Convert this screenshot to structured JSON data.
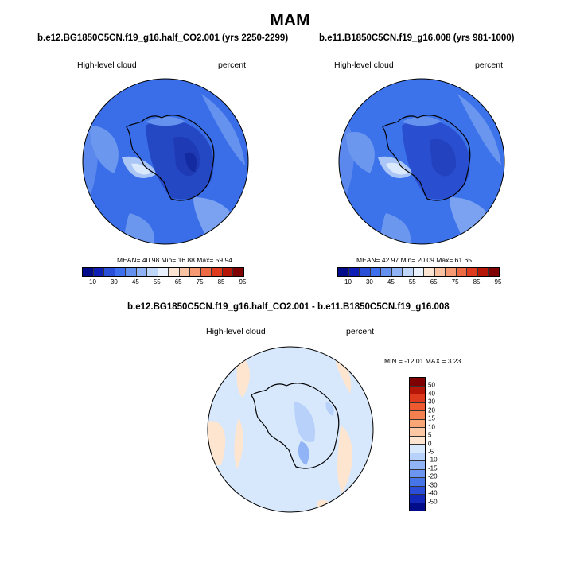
{
  "title": "MAM",
  "panels": [
    {
      "case": "b.e12.BG1850C5CN.f19_g16.half_CO2.001 (yrs 2250-2299)",
      "variable": "High-level cloud",
      "units": "percent",
      "stats": {
        "mean_label": "MEAN=",
        "mean": "40.98",
        "min_label": "Min=",
        "min": "16.88",
        "max_label": "Max=",
        "max": "59.94"
      }
    },
    {
      "case": "b.e11.B1850C5CN.f19_g16.008 (yrs 981-1000)",
      "variable": "High-level cloud",
      "units": "percent",
      "stats": {
        "mean_label": "MEAN=",
        "mean": "42.97",
        "min_label": "Min=",
        "min": "20.09",
        "max_label": "Max=",
        "max": "61.65"
      }
    },
    {
      "case": "b.e12.BG1850C5CN.f19_g16.half_CO2.001 - b.e11.B1850C5CN.f19_g16.008",
      "variable": "High-level cloud",
      "units": "percent",
      "minmax": "MIN = -12.01  MAX =   3.23"
    }
  ],
  "colorbar_abs": {
    "labels": [
      "10",
      "30",
      "45",
      "55",
      "65",
      "75",
      "85",
      "95"
    ],
    "colors": [
      "#000c8a",
      "#0f1fb4",
      "#2a4ed8",
      "#3c6eee",
      "#6490f0",
      "#8fb2f5",
      "#bed6fa",
      "#e8f1fd",
      "#fde3d1",
      "#f9c2a2",
      "#f59a72",
      "#ee6a42",
      "#dd3a1e",
      "#b51608",
      "#7f0000"
    ]
  },
  "colorbar_diff": {
    "labels": [
      "50",
      "40",
      "30",
      "20",
      "15",
      "10",
      "5",
      "0",
      "-5",
      "-10",
      "-15",
      "-20",
      "-30",
      "-40",
      "-50"
    ],
    "colors": [
      "#7f0000",
      "#b51608",
      "#dd3a1e",
      "#ee5a30",
      "#f5804f",
      "#f9a676",
      "#fbc8a3",
      "#fde5d0",
      "#d7e8fd",
      "#b7d1fa",
      "#90b4f5",
      "#6b95f0",
      "#4575e6",
      "#2a4ed8",
      "#1328b8",
      "#000c8a"
    ]
  }
}
